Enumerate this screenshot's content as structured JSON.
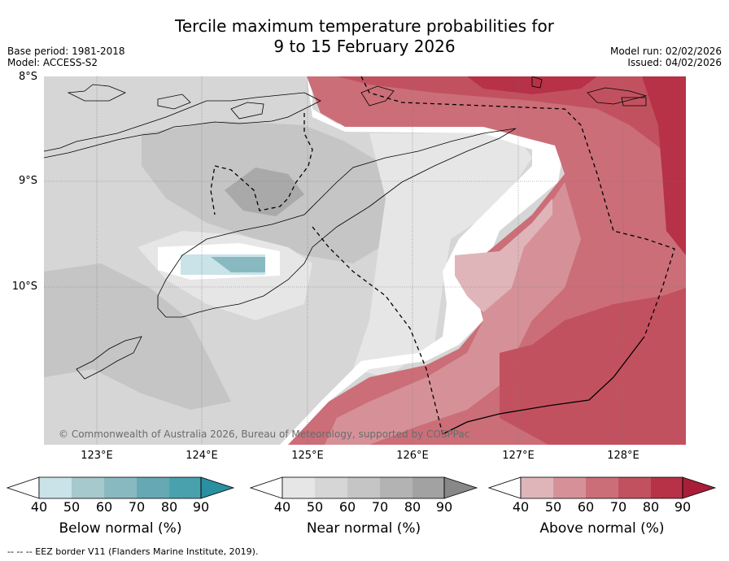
{
  "title": {
    "line1": "Tercile maximum temperature probabilities for",
    "line2": "9 to 15 February 2026"
  },
  "meta_left": {
    "base_period": "Base period: 1981-2018",
    "model": "Model: ACCESS-S2"
  },
  "meta_right": {
    "model_run": "Model run: 02/02/2026",
    "issued": "Issued: 04/02/2026"
  },
  "map": {
    "lat_labels": [
      "8°S",
      "9°S",
      "10°S"
    ],
    "lon_labels": [
      "123°E",
      "124°E",
      "125°E",
      "126°E",
      "127°E",
      "128°E"
    ],
    "copyright": "© Commonwealth of Australia 2026, Bureau of Meteorology, supported by COSPPac",
    "colors": {
      "below": [
        "#c9e3e8",
        "#a6c9cd",
        "#88b9c1",
        "#66a9b5",
        "#4aa1ae",
        "#2a8fa0"
      ],
      "near": [
        "#e6e6e6",
        "#d6d6d6",
        "#c5c5c5",
        "#b3b3b3",
        "#a2a2a2",
        "#888888"
      ],
      "above": [
        "#dfb5ba",
        "#d69198",
        "#cb6e78",
        "#c2515f",
        "#b73147",
        "#a81e38"
      ]
    }
  },
  "colorbars": {
    "ticks": [
      "40",
      "50",
      "60",
      "70",
      "80",
      "90"
    ],
    "below_label": "Below normal (%)",
    "near_label": "Near normal (%)",
    "above_label": "Above normal (%)"
  },
  "footer": "-- -- -- EEZ border V11 (Flanders Marine Institute, 2019)."
}
